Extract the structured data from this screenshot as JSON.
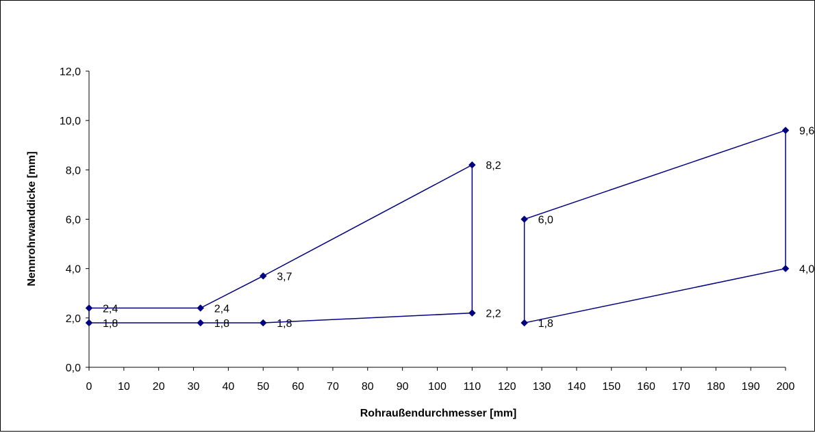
{
  "chart_data": {
    "type": "line",
    "title": "",
    "xlabel": "Rohraußendurchmesser [mm]",
    "ylabel": "Nennrohrwanddicke [mm]",
    "xlim": [
      0,
      200
    ],
    "ylim": [
      0,
      12
    ],
    "x_ticks": [
      0,
      10,
      20,
      30,
      40,
      50,
      60,
      70,
      80,
      90,
      100,
      110,
      120,
      130,
      140,
      150,
      160,
      170,
      180,
      190,
      200
    ],
    "y_ticks": [
      0,
      2,
      4,
      6,
      8,
      10,
      12
    ],
    "y_tick_labels": [
      "0,0",
      "2,0",
      "4,0",
      "6,0",
      "8,0",
      "10,0",
      "12,0"
    ],
    "grid": false,
    "legend": "none",
    "line_color": "#000080",
    "series": [
      {
        "x": [
          0,
          32,
          50,
          110,
          110,
          50,
          32,
          0,
          0
        ],
        "y": [
          1.8,
          1.8,
          1.8,
          2.2,
          8.2,
          3.7,
          2.4,
          2.4,
          1.8
        ]
      },
      {
        "x": [
          125,
          200,
          200,
          125,
          125
        ],
        "y": [
          1.8,
          4.0,
          9.6,
          6.0,
          1.8
        ]
      }
    ],
    "data_labels": [
      {
        "x": 0,
        "y": 2.4,
        "text": "2,4"
      },
      {
        "x": 0,
        "y": 1.8,
        "text": "1,8"
      },
      {
        "x": 32,
        "y": 2.4,
        "text": "2,4"
      },
      {
        "x": 32,
        "y": 1.8,
        "text": "1,8"
      },
      {
        "x": 50,
        "y": 3.7,
        "text": "3,7"
      },
      {
        "x": 50,
        "y": 1.8,
        "text": "1,8"
      },
      {
        "x": 110,
        "y": 8.2,
        "text": "8,2"
      },
      {
        "x": 110,
        "y": 2.2,
        "text": "2,2"
      },
      {
        "x": 125,
        "y": 6.0,
        "text": "6,0"
      },
      {
        "x": 125,
        "y": 1.8,
        "text": "1,8"
      },
      {
        "x": 200,
        "y": 9.6,
        "text": "9,6"
      },
      {
        "x": 200,
        "y": 4.0,
        "text": "4,0"
      }
    ]
  }
}
